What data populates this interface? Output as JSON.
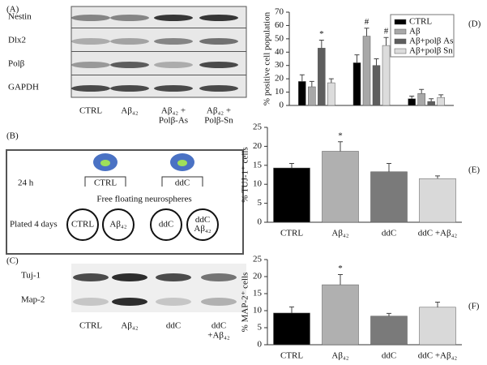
{
  "panel_labels": {
    "a": "(A)",
    "b": "(B)",
    "c": "(C)",
    "d": "(D)",
    "e": "(E)",
    "f": "(F)"
  },
  "blot_a": {
    "rows": [
      "Nestin",
      "Dlx2",
      "Polβ",
      "GAPDH"
    ],
    "lanes": [
      [
        "CTRL"
      ],
      [
        "Aβ₄₂"
      ],
      [
        "Aβ₄₂ +",
        "Polβ-As"
      ],
      [
        "Aβ₄₂ +",
        "Polβ-Sn"
      ]
    ]
  },
  "scheme_b": {
    "time": "24 h",
    "groups": [
      "CTRL",
      "ddC"
    ],
    "caption": "Free floating  neurospheres",
    "plated": "Plated 4 days",
    "wells": [
      [
        "CTRL"
      ],
      [
        "Aβ₄₂"
      ],
      [
        "ddC"
      ],
      [
        "ddC",
        "Aβ₄₂"
      ]
    ]
  },
  "blot_c": {
    "rows": [
      "Tuj-1",
      "Map-2"
    ],
    "lanes": [
      [
        "CTRL"
      ],
      [
        "Aβ₄₂"
      ],
      [
        "ddC"
      ],
      [
        "ddC",
        "+Aβ₄₂"
      ]
    ]
  },
  "chart_data": [
    {
      "type": "bar",
      "y_label": "% positive cell population",
      "categories": [
        null,
        null,
        null
      ],
      "ylim": [
        0,
        70
      ],
      "yticks": [
        0,
        10,
        20,
        30,
        40,
        50,
        60,
        70
      ],
      "legend": "top-right",
      "series": [
        {
          "name": "CTRL",
          "color": "#000000",
          "values": [
            18,
            32,
            5
          ],
          "errors": [
            5,
            6,
            2
          ],
          "significance": [
            null,
            null,
            null
          ]
        },
        {
          "name": "Aβ",
          "color": "#a8a8a8",
          "values": [
            14,
            52,
            9
          ],
          "errors": [
            4,
            6,
            3
          ],
          "significance": [
            null,
            "#",
            null
          ]
        },
        {
          "name": "Aβ+polβ As",
          "color": "#5e5e5e",
          "values": [
            43,
            30,
            3
          ],
          "errors": [
            6,
            5,
            2
          ],
          "significance": [
            "*",
            null,
            null
          ]
        },
        {
          "name": "Aβ+polβ Sn",
          "color": "#dcdcdc",
          "values": [
            17,
            45,
            6
          ],
          "errors": [
            3,
            6,
            2
          ],
          "significance": [
            null,
            "#",
            null
          ]
        }
      ]
    },
    {
      "type": "bar",
      "y_label": "% TUJ-1⁺ cells",
      "categories": [
        "CTRL",
        "Aβ₄₂",
        "ddC",
        "ddC +Aβ₄₂"
      ],
      "ylim": [
        0,
        25
      ],
      "yticks": [
        0,
        5,
        10,
        15,
        20,
        25
      ],
      "series": [
        {
          "colors": [
            "#000000",
            "#b0b0b0",
            "#7a7a7a",
            "#d9d9d9"
          ],
          "values": [
            14.3,
            18.7,
            13.3,
            11.5
          ],
          "errors": [
            1.2,
            2.5,
            2.2,
            0.7
          ],
          "significance": [
            null,
            "*",
            null,
            null
          ]
        }
      ]
    },
    {
      "type": "bar",
      "y_label": "% MAP-2⁺ cells",
      "categories": [
        "CTRL",
        "Aβ₄₂",
        "ddC",
        "ddC +Aβ₄₂"
      ],
      "ylim": [
        0,
        25
      ],
      "yticks": [
        0,
        5,
        10,
        15,
        20,
        25
      ],
      "series": [
        {
          "colors": [
            "#000000",
            "#b0b0b0",
            "#7a7a7a",
            "#d9d9d9"
          ],
          "values": [
            9.3,
            17.6,
            8.4,
            11.0
          ],
          "errors": [
            1.8,
            3.0,
            0.8,
            1.5
          ],
          "significance": [
            null,
            "*",
            null,
            null
          ]
        }
      ]
    }
  ]
}
